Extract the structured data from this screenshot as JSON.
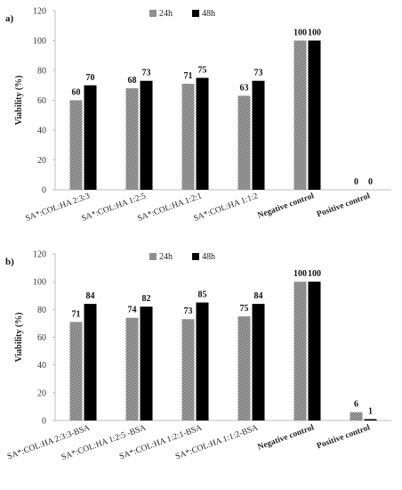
{
  "chart_data": [
    {
      "panel_label": "a)",
      "type": "bar",
      "ylabel": "Viability (%)",
      "ylim": [
        0,
        120
      ],
      "yticks": [
        0,
        20,
        40,
        60,
        80,
        100,
        120
      ],
      "legend_position": "top-center",
      "categories": [
        "SA*:COL:HA 2:3:3",
        "SA*:COL:HA 1:2:5",
        "SA*:COL:HA 1:2:1",
        "SA*:COL:HA 1:1:2",
        "Negative control",
        "Positive control"
      ],
      "categories_bold": [
        false,
        false,
        false,
        false,
        true,
        true
      ],
      "series": [
        {
          "name": "24h",
          "values": [
            60,
            68,
            71,
            63,
            100,
            0
          ],
          "color": "#8a8a8a",
          "pattern": "hatched"
        },
        {
          "name": "48h",
          "values": [
            70,
            73,
            75,
            73,
            100,
            0
          ],
          "color": "#000000",
          "pattern": "solid"
        }
      ]
    },
    {
      "panel_label": "b)",
      "type": "bar",
      "ylabel": "Viability (%)",
      "ylim": [
        0,
        120
      ],
      "yticks": [
        0,
        20,
        40,
        60,
        80,
        100,
        120
      ],
      "legend_position": "top-center",
      "categories": [
        "SA*:COL:HA 2:3:3-BSA",
        "SA*:COL:HA 1:2:5 -BSA",
        "SA*:COL:HA 1:2:1-BSA",
        "SA*:COL:HA 1:1:2-BSA",
        "Negative control",
        "Positive control"
      ],
      "categories_bold": [
        false,
        false,
        false,
        false,
        true,
        true
      ],
      "series": [
        {
          "name": "24h",
          "values": [
            71,
            74,
            73,
            75,
            100,
            6
          ],
          "color": "#8a8a8a",
          "pattern": "hatched"
        },
        {
          "name": "48h",
          "values": [
            84,
            82,
            85,
            84,
            100,
            1
          ],
          "color": "#000000",
          "pattern": "solid"
        }
      ]
    }
  ]
}
